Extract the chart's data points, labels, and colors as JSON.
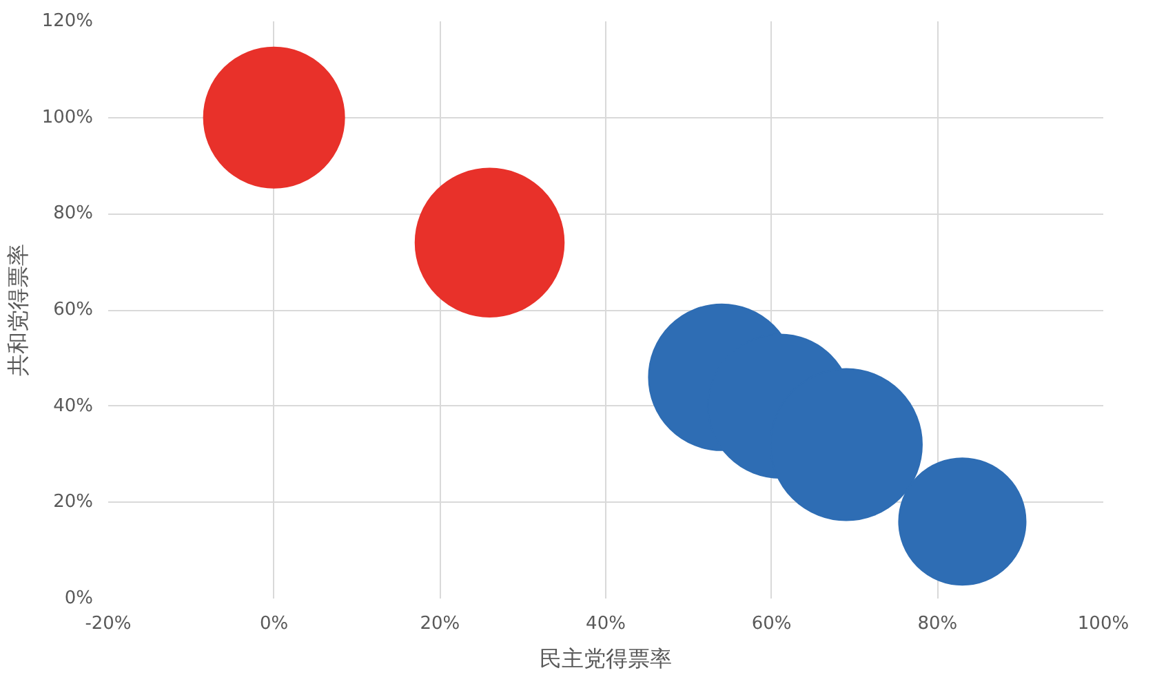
{
  "chart_data": {
    "type": "bubble",
    "xlabel": "民主党得票率",
    "ylabel": "共和党得票率",
    "xlim": [
      -20,
      100
    ],
    "ylim": [
      0,
      120
    ],
    "xticks": [
      {
        "value": -20,
        "label": "-20%"
      },
      {
        "value": 0,
        "label": "0%"
      },
      {
        "value": 20,
        "label": "20%"
      },
      {
        "value": 40,
        "label": "40%"
      },
      {
        "value": 60,
        "label": "60%"
      },
      {
        "value": 80,
        "label": "80%"
      },
      {
        "value": 100,
        "label": "100%"
      }
    ],
    "yticks": [
      {
        "value": 0,
        "label": "0%"
      },
      {
        "value": 20,
        "label": "20%"
      },
      {
        "value": 40,
        "label": "40%"
      },
      {
        "value": 60,
        "label": "60%"
      },
      {
        "value": 80,
        "label": "80%"
      },
      {
        "value": 100,
        "label": "100%"
      },
      {
        "value": 120,
        "label": "120%"
      }
    ],
    "grid": true,
    "series": [
      {
        "color": "#e8312a",
        "x": [
          0,
          26
        ],
        "values": [
          100,
          74
        ],
        "sizes": [
          0.86,
          0.96
        ]
      },
      {
        "color": "#2e6db4",
        "x": [
          54,
          61,
          69,
          83
        ],
        "values": [
          46,
          40,
          32,
          16
        ],
        "sizes": [
          0.93,
          0.9,
          1,
          0.7
        ]
      }
    ]
  }
}
